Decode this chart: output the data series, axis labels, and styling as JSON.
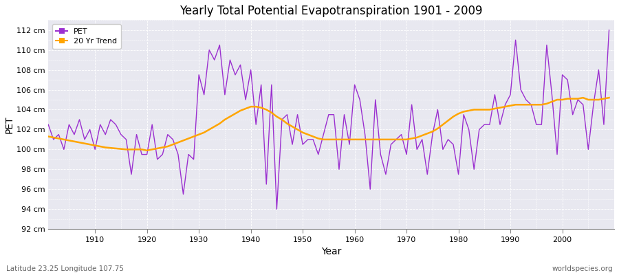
{
  "title": "Yearly Total Potential Evapotranspiration 1901 - 2009",
  "xlabel": "Year",
  "ylabel": "PET",
  "subtitle_left": "Latitude 23.25 Longitude 107.75",
  "subtitle_right": "worldspecies.org",
  "ylim": [
    92,
    113
  ],
  "ytick_labels": [
    "92 cm",
    "94 cm",
    "96 cm",
    "98 cm",
    "100 cm",
    "102 cm",
    "104 cm",
    "106 cm",
    "108 cm",
    "110 cm",
    "112 cm"
  ],
  "ytick_values": [
    92,
    94,
    96,
    98,
    100,
    102,
    104,
    106,
    108,
    110,
    112
  ],
  "pet_color": "#9b30d0",
  "trend_color": "#FFA500",
  "fig_bg_color": "#ffffff",
  "plot_bg_color": "#e8e8f0",
  "grid_color": "#ffffff",
  "years": [
    1901,
    1902,
    1903,
    1904,
    1905,
    1906,
    1907,
    1908,
    1909,
    1910,
    1911,
    1912,
    1913,
    1914,
    1915,
    1916,
    1917,
    1918,
    1919,
    1920,
    1921,
    1922,
    1923,
    1924,
    1925,
    1926,
    1927,
    1928,
    1929,
    1930,
    1931,
    1932,
    1933,
    1934,
    1935,
    1936,
    1937,
    1938,
    1939,
    1940,
    1941,
    1942,
    1943,
    1944,
    1945,
    1946,
    1947,
    1948,
    1949,
    1950,
    1951,
    1952,
    1953,
    1954,
    1955,
    1956,
    1957,
    1958,
    1959,
    1960,
    1961,
    1962,
    1963,
    1964,
    1965,
    1966,
    1967,
    1968,
    1969,
    1970,
    1971,
    1972,
    1973,
    1974,
    1975,
    1976,
    1977,
    1978,
    1979,
    1980,
    1981,
    1982,
    1983,
    1984,
    1985,
    1986,
    1987,
    1988,
    1989,
    1990,
    1991,
    1992,
    1993,
    1994,
    1995,
    1996,
    1997,
    1998,
    1999,
    2000,
    2001,
    2002,
    2003,
    2004,
    2005,
    2006,
    2007,
    2008,
    2009
  ],
  "pet_values": [
    102.5,
    101.0,
    101.5,
    100.0,
    102.5,
    101.5,
    103.0,
    101.0,
    102.0,
    100.0,
    102.5,
    101.5,
    103.0,
    102.5,
    101.5,
    101.0,
    97.5,
    101.5,
    99.5,
    99.5,
    102.5,
    99.0,
    99.5,
    101.5,
    101.0,
    99.5,
    95.5,
    99.5,
    99.0,
    107.5,
    105.5,
    110.0,
    109.0,
    110.5,
    105.5,
    109.0,
    107.5,
    108.5,
    105.0,
    108.0,
    102.5,
    106.5,
    96.5,
    106.5,
    94.0,
    103.0,
    103.5,
    100.5,
    103.5,
    100.5,
    101.0,
    101.0,
    99.5,
    101.5,
    103.5,
    103.5,
    98.0,
    103.5,
    100.5,
    106.5,
    105.0,
    101.5,
    96.0,
    105.0,
    99.5,
    97.5,
    100.5,
    101.0,
    101.5,
    99.5,
    104.5,
    100.0,
    101.0,
    97.5,
    101.5,
    104.0,
    100.0,
    101.0,
    100.5,
    97.5,
    103.5,
    102.0,
    98.0,
    102.0,
    102.5,
    102.5,
    105.5,
    102.5,
    104.5,
    105.5,
    111.0,
    106.0,
    105.0,
    104.5,
    102.5,
    102.5,
    110.5,
    105.5,
    99.5,
    107.5,
    107.0,
    103.5,
    105.0,
    104.5,
    100.0,
    104.5,
    108.0,
    102.5,
    112.0
  ],
  "trend_values": [
    101.3,
    101.2,
    101.1,
    101.0,
    100.9,
    100.8,
    100.7,
    100.6,
    100.5,
    100.4,
    100.3,
    100.2,
    100.15,
    100.1,
    100.05,
    100.0,
    100.0,
    100.0,
    100.0,
    99.9,
    100.0,
    100.1,
    100.2,
    100.3,
    100.5,
    100.7,
    100.9,
    101.1,
    101.3,
    101.5,
    101.7,
    102.0,
    102.3,
    102.6,
    103.0,
    103.3,
    103.6,
    103.9,
    104.1,
    104.3,
    104.3,
    104.2,
    104.0,
    103.7,
    103.3,
    103.0,
    102.6,
    102.3,
    102.0,
    101.7,
    101.5,
    101.3,
    101.1,
    101.0,
    101.0,
    101.0,
    101.0,
    101.0,
    101.0,
    101.0,
    101.0,
    101.0,
    101.0,
    101.0,
    101.0,
    101.0,
    101.0,
    101.0,
    101.0,
    101.0,
    101.1,
    101.2,
    101.4,
    101.6,
    101.8,
    102.1,
    102.5,
    102.9,
    103.3,
    103.6,
    103.8,
    103.9,
    104.0,
    104.0,
    104.0,
    104.0,
    104.1,
    104.2,
    104.3,
    104.4,
    104.5,
    104.5,
    104.5,
    104.5,
    104.5,
    104.5,
    104.6,
    104.8,
    105.0,
    105.0,
    105.1,
    105.1,
    105.1,
    105.2,
    105.0,
    105.0,
    105.0,
    105.1,
    105.2
  ]
}
